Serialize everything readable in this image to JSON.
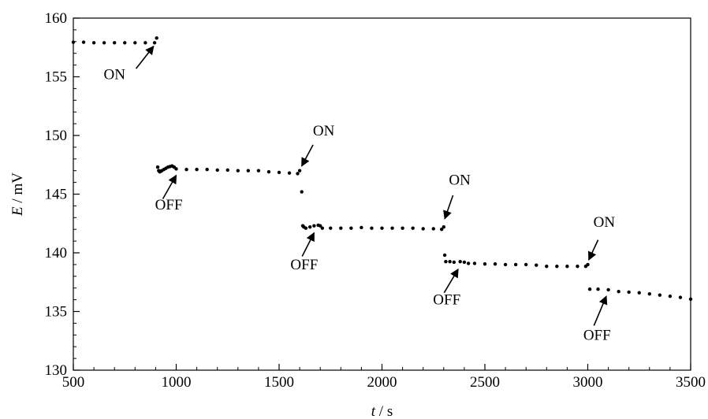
{
  "chart_data": {
    "type": "scatter",
    "title": "",
    "xlabel": {
      "var": "t",
      "unit": " / s"
    },
    "ylabel": {
      "var": "E",
      "unit": " / mV"
    },
    "xlim": [
      500,
      3500
    ],
    "ylim": [
      130,
      160
    ],
    "xticks": [
      500,
      1000,
      1500,
      2000,
      2500,
      3000,
      3500
    ],
    "yticks": [
      130,
      135,
      140,
      145,
      150,
      155,
      160
    ],
    "grid": false,
    "legend": "none",
    "marker_color": "#000000",
    "series": [
      {
        "points": [
          [
            500,
            157.95
          ],
          [
            550,
            157.95
          ],
          [
            600,
            157.9
          ],
          [
            650,
            157.9
          ],
          [
            700,
            157.9
          ],
          [
            750,
            157.9
          ],
          [
            800,
            157.9
          ],
          [
            850,
            157.9
          ],
          [
            895,
            157.9
          ],
          [
            905,
            158.3
          ],
          [
            910,
            147.3
          ],
          [
            915,
            147.0
          ],
          [
            920,
            146.9
          ],
          [
            925,
            146.95
          ],
          [
            930,
            147.0
          ],
          [
            940,
            147.1
          ],
          [
            950,
            147.2
          ],
          [
            960,
            147.3
          ],
          [
            970,
            147.35
          ],
          [
            980,
            147.4
          ],
          [
            990,
            147.3
          ],
          [
            1000,
            147.15
          ],
          [
            1050,
            147.1
          ],
          [
            1100,
            147.1
          ],
          [
            1150,
            147.1
          ],
          [
            1200,
            147.05
          ],
          [
            1250,
            147.05
          ],
          [
            1300,
            147.0
          ],
          [
            1350,
            147.0
          ],
          [
            1400,
            147.0
          ],
          [
            1450,
            146.9
          ],
          [
            1500,
            146.85
          ],
          [
            1550,
            146.8
          ],
          [
            1590,
            146.75
          ],
          [
            1600,
            147.0
          ],
          [
            1610,
            145.2
          ],
          [
            1615,
            142.3
          ],
          [
            1620,
            142.2
          ],
          [
            1630,
            142.1
          ],
          [
            1650,
            142.2
          ],
          [
            1670,
            142.3
          ],
          [
            1690,
            142.35
          ],
          [
            1700,
            142.3
          ],
          [
            1710,
            142.1
          ],
          [
            1750,
            142.1
          ],
          [
            1800,
            142.1
          ],
          [
            1850,
            142.1
          ],
          [
            1900,
            142.15
          ],
          [
            1950,
            142.1
          ],
          [
            2000,
            142.1
          ],
          [
            2050,
            142.1
          ],
          [
            2100,
            142.1
          ],
          [
            2150,
            142.1
          ],
          [
            2200,
            142.05
          ],
          [
            2250,
            142.05
          ],
          [
            2290,
            142.0
          ],
          [
            2300,
            142.2
          ],
          [
            2305,
            139.8
          ],
          [
            2310,
            139.25
          ],
          [
            2330,
            139.25
          ],
          [
            2350,
            139.2
          ],
          [
            2380,
            139.25
          ],
          [
            2400,
            139.2
          ],
          [
            2420,
            139.1
          ],
          [
            2450,
            139.1
          ],
          [
            2500,
            139.05
          ],
          [
            2550,
            139.05
          ],
          [
            2600,
            139.0
          ],
          [
            2650,
            139.0
          ],
          [
            2700,
            139.0
          ],
          [
            2750,
            138.95
          ],
          [
            2800,
            138.85
          ],
          [
            2850,
            138.85
          ],
          [
            2900,
            138.85
          ],
          [
            2950,
            138.85
          ],
          [
            2990,
            138.85
          ],
          [
            3000,
            139.0
          ],
          [
            3010,
            136.9
          ],
          [
            3050,
            136.9
          ],
          [
            3100,
            136.85
          ],
          [
            3150,
            136.7
          ],
          [
            3200,
            136.65
          ],
          [
            3250,
            136.6
          ],
          [
            3300,
            136.5
          ],
          [
            3350,
            136.4
          ],
          [
            3400,
            136.3
          ],
          [
            3450,
            136.2
          ],
          [
            3500,
            136.05
          ]
        ]
      }
    ],
    "annotations": [
      {
        "text": "ON",
        "x": 700,
        "y": 154.8,
        "arrow_from": [
          805,
          155.7
        ],
        "arrow_to": [
          890,
          157.6
        ]
      },
      {
        "text": "OFF",
        "x": 964,
        "y": 143.7,
        "arrow_from": [
          935,
          144.6
        ],
        "arrow_to": [
          1000,
          146.6
        ]
      },
      {
        "text": "ON",
        "x": 1717,
        "y": 150.0,
        "arrow_from": [
          1665,
          149.2
        ],
        "arrow_to": [
          1610,
          147.4
        ]
      },
      {
        "text": "OFF",
        "x": 1622,
        "y": 138.6,
        "arrow_from": [
          1612,
          139.7
        ],
        "arrow_to": [
          1670,
          141.7
        ]
      },
      {
        "text": "ON",
        "x": 2378,
        "y": 145.8,
        "arrow_from": [
          2345,
          144.9
        ],
        "arrow_to": [
          2305,
          142.9
        ]
      },
      {
        "text": "OFF",
        "x": 2315,
        "y": 135.6,
        "arrow_from": [
          2302,
          136.6
        ],
        "arrow_to": [
          2370,
          138.6
        ]
      },
      {
        "text": "ON",
        "x": 3080,
        "y": 142.2,
        "arrow_from": [
          3050,
          141.1
        ],
        "arrow_to": [
          3005,
          139.4
        ]
      },
      {
        "text": "OFF",
        "x": 3045,
        "y": 132.6,
        "arrow_from": [
          3030,
          133.8
        ],
        "arrow_to": [
          3090,
          136.3
        ]
      }
    ]
  }
}
